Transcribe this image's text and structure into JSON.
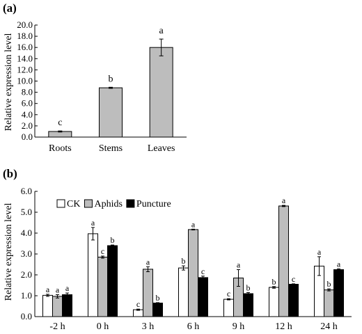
{
  "colors": {
    "gray": "#bdbdbd",
    "black": "#000000",
    "white": "#ffffff"
  },
  "chart_data": [
    {
      "panel_label": "(a)",
      "type": "bar",
      "categories": [
        "Roots",
        "Stems",
        "Leaves"
      ],
      "values": [
        1.0,
        8.8,
        16.0
      ],
      "errors": [
        0.1,
        0.1,
        1.5
      ],
      "significance": [
        "c",
        "b",
        "a"
      ],
      "ylabel": "Relative expression level",
      "ylim": [
        0,
        20
      ],
      "yticks": [
        "0.0",
        "2.0",
        "4.0",
        "6.0",
        "8.0",
        "10.0",
        "12.0",
        "14.0",
        "16.0",
        "18.0",
        "20.0"
      ],
      "grid": false
    },
    {
      "panel_label": "(b)",
      "type": "bar",
      "categories": [
        "-2 h",
        "0 h",
        "3 h",
        "6 h",
        "9 h",
        "12 h",
        "24 h"
      ],
      "series": [
        {
          "name": "CK",
          "color": "white",
          "values": [
            1.02,
            3.97,
            0.33,
            2.33,
            0.83,
            1.4,
            2.42
          ],
          "errors": [
            0.05,
            0.3,
            0.03,
            0.1,
            0.03,
            0.04,
            0.45
          ],
          "significance": [
            "a",
            "a",
            "c",
            "b",
            "c",
            "b",
            "a"
          ]
        },
        {
          "name": "Aphids",
          "color": "gray",
          "values": [
            0.97,
            2.85,
            2.27,
            4.17,
            1.85,
            5.3,
            1.28
          ],
          "errors": [
            0.08,
            0.05,
            0.12,
            0.02,
            0.4,
            0.03,
            0.05
          ],
          "significance": [
            "a",
            "c",
            "a",
            "a",
            "a",
            "a",
            "b"
          ]
        },
        {
          "name": "Puncture",
          "color": "black",
          "values": [
            1.05,
            3.4,
            0.65,
            1.87,
            1.1,
            1.55,
            2.25
          ],
          "errors": [
            0.08,
            0.03,
            0.02,
            0.07,
            0.05,
            0.02,
            0.04
          ],
          "significance": [
            "a",
            "b",
            "b",
            "c",
            "b",
            "c",
            "a"
          ]
        }
      ],
      "ylabel": "Relative expression level",
      "ylim": [
        0,
        6
      ],
      "yticks": [
        "0.0",
        "1.0",
        "2.0",
        "3.0",
        "4.0",
        "5.0",
        "6.0"
      ],
      "legend": "top-left",
      "grid": false
    }
  ]
}
